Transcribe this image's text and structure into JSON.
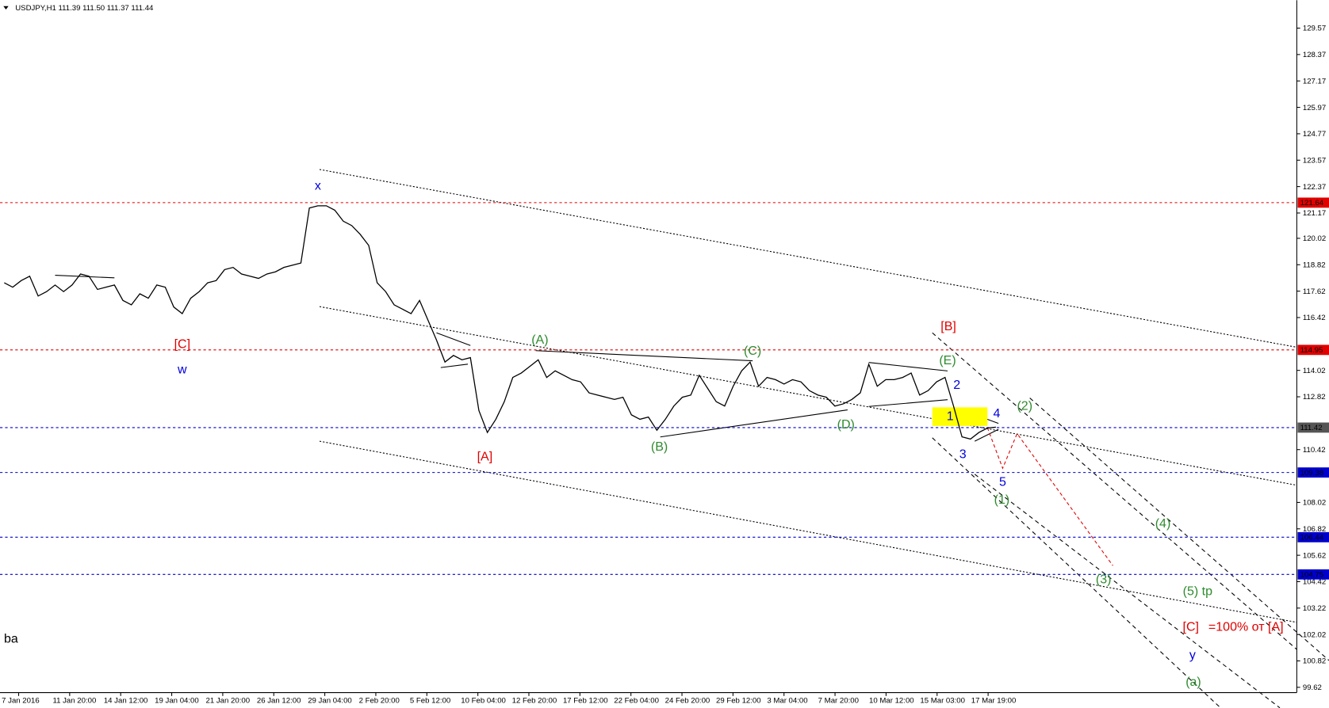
{
  "chart_data": {
    "type": "line",
    "title": "USDJPY,H1  111.39 111.50 111.37 111.44",
    "ylim": [
      99.38,
      130.84
    ],
    "yticks": [
      129.57,
      128.37,
      127.17,
      125.97,
      124.77,
      123.57,
      122.37,
      121.17,
      120.02,
      118.82,
      117.62,
      116.42,
      114.02,
      112.82,
      110.42,
      108.02,
      106.82,
      105.62,
      104.42,
      103.22,
      102.02,
      100.82,
      99.62
    ],
    "time_labels": [
      "7 Jan 2016",
      "11 Jan 20:00",
      "14 Jan 12:00",
      "19 Jan 04:00",
      "21 Jan 20:00",
      "26 Jan 12:00",
      "29 Jan 04:00",
      "2 Feb 20:00",
      "5 Feb 12:00",
      "10 Feb 04:00",
      "12 Feb 20:00",
      "17 Feb 12:00",
      "22 Feb 04:00",
      "24 Feb 20:00",
      "29 Feb 12:00",
      "3 Mar 04:00",
      "7 Mar 20:00",
      "10 Mar 12:00",
      "15 Mar 03:00",
      "17 Mar 19:00"
    ],
    "series": [
      {
        "name": "USDJPY",
        "color": "#000000",
        "values": [
          118.0,
          117.8,
          118.1,
          118.3,
          117.4,
          117.6,
          117.9,
          117.6,
          117.9,
          118.4,
          118.3,
          117.7,
          117.8,
          117.9,
          117.2,
          117.0,
          117.5,
          117.3,
          117.9,
          117.8,
          116.9,
          116.6,
          117.3,
          117.6,
          118.0,
          118.1,
          118.6,
          118.7,
          118.4,
          118.3,
          118.2,
          118.4,
          118.5,
          118.7,
          118.8,
          118.9,
          121.4,
          121.5,
          121.5,
          121.3,
          120.8,
          120.6,
          120.2,
          119.7,
          118.0,
          117.6,
          117.0,
          116.8,
          116.6,
          117.2,
          116.3,
          115.4,
          114.4,
          114.7,
          114.5,
          114.6,
          112.2,
          111.2,
          111.8,
          112.6,
          113.7,
          113.9,
          114.2,
          114.5,
          113.7,
          114.0,
          113.8,
          113.6,
          113.5,
          113.0,
          112.9,
          112.8,
          112.7,
          112.8,
          112.0,
          111.8,
          111.9,
          111.3,
          111.8,
          112.4,
          112.8,
          112.9,
          113.8,
          113.2,
          112.6,
          112.4,
          113.3,
          114.0,
          114.4,
          113.3,
          113.7,
          113.6,
          113.4,
          113.6,
          113.5,
          113.1,
          112.9,
          112.8,
          112.4,
          112.5,
          112.7,
          113.0,
          114.3,
          113.3,
          113.6,
          113.6,
          113.7,
          113.9,
          112.9,
          113.1,
          113.5,
          113.7,
          112.4,
          111.0,
          110.9,
          111.2,
          111.4,
          111.44
        ]
      }
    ],
    "levels": [
      {
        "value": 121.64,
        "color": "#e00000"
      },
      {
        "value": 114.95,
        "color": "#e00000"
      },
      {
        "value": 111.42,
        "color": "#0000cc",
        "label_color": "#555555"
      },
      {
        "value": 109.38,
        "color": "#0000cc"
      },
      {
        "value": 106.44,
        "color": "#0000cc"
      },
      {
        "value": 104.75,
        "color": "#0000cc"
      }
    ],
    "annotations": [
      {
        "text": "x",
        "color": "#0000dd"
      },
      {
        "text": "w",
        "color": "#0000dd"
      },
      {
        "text": "[C]",
        "color": "#e00000"
      },
      {
        "text": "[A]",
        "color": "#e00000"
      },
      {
        "text": "(A)",
        "color": "#2e8b2e"
      },
      {
        "text": "(B)",
        "color": "#2e8b2e"
      },
      {
        "text": "(C)",
        "color": "#2e8b2e"
      },
      {
        "text": "(D)",
        "color": "#2e8b2e"
      },
      {
        "text": "(E)",
        "color": "#2e8b2e"
      },
      {
        "text": "[B]",
        "color": "#e00000"
      },
      {
        "text": "2",
        "color": "#0000dd"
      },
      {
        "text": "1",
        "color": "#0000dd"
      },
      {
        "text": "3",
        "color": "#0000dd"
      },
      {
        "text": "4",
        "color": "#0000dd"
      },
      {
        "text": "5",
        "color": "#0000dd"
      },
      {
        "text": "(1)",
        "color": "#2e8b2e"
      },
      {
        "text": "(2)",
        "color": "#2e8b2e"
      },
      {
        "text": "(3)",
        "color": "#2e8b2e"
      },
      {
        "text": "(4)",
        "color": "#2e8b2e"
      },
      {
        "text": "(5) tp",
        "color": "#2e8b2e"
      },
      {
        "text": "[C]",
        "color": "#e00000"
      },
      {
        "text": "=100% от [A]",
        "color": "#e00000"
      },
      {
        "text": "y",
        "color": "#0000dd"
      },
      {
        "text": "(a)",
        "color": "#2e8b2e"
      },
      {
        "text": "ba",
        "color": "#000000"
      }
    ]
  }
}
